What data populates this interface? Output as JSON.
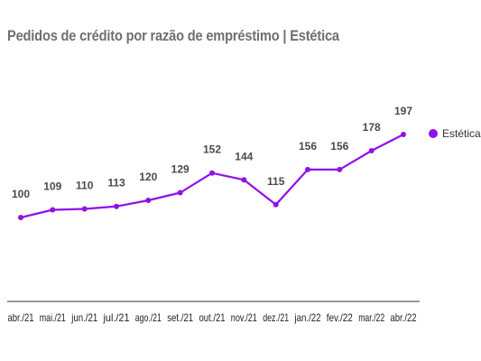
{
  "chart_data": {
    "type": "line",
    "title": "Pedidos de crédito por razão de empréstimo | Estética",
    "xlabel": "",
    "ylabel": "",
    "categories": [
      "abr./21",
      "mai./21",
      "jun./21",
      "jul./21",
      "ago./21",
      "set./21",
      "out./21",
      "nov./21",
      "dez./21",
      "jan./22",
      "fev./22",
      "mar./22",
      "abr./22"
    ],
    "series": [
      {
        "name": "Estética",
        "values": [
          100,
          109,
          110,
          113,
          120,
          129,
          152,
          144,
          115,
          156,
          156,
          178,
          197
        ],
        "color": "#8f10e8"
      }
    ],
    "ylim": [
      0,
      230
    ],
    "grid": false,
    "legend": "right"
  }
}
